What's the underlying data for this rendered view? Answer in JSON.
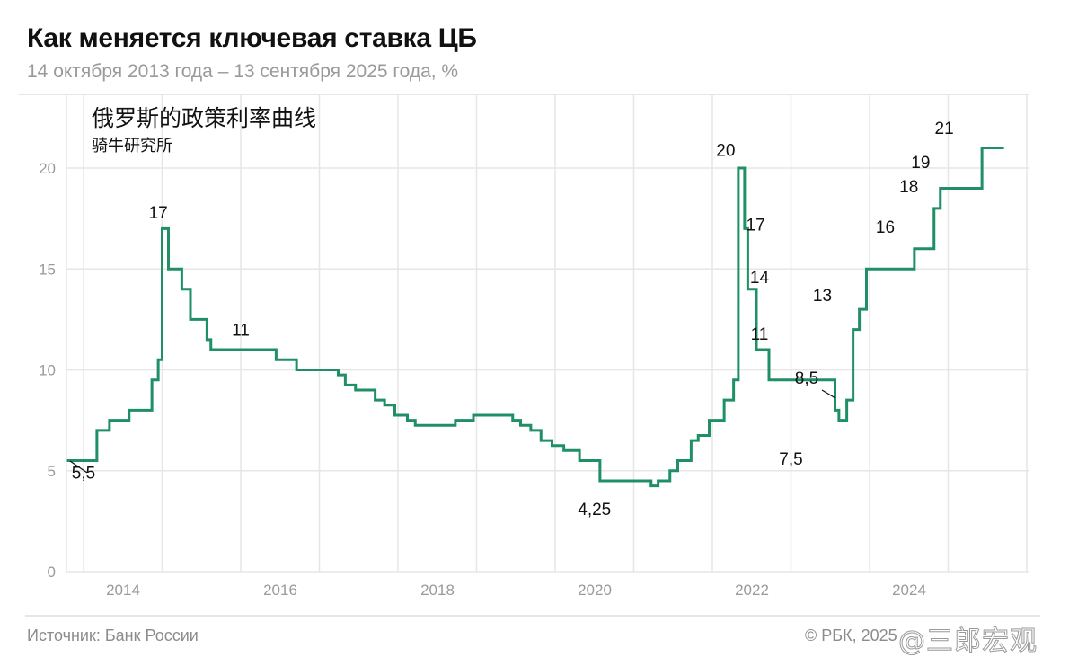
{
  "header": {
    "title": "Как меняется ключевая ставка ЦБ",
    "subtitle": "14 октября 2013 года – 13 сентября 2025 года, %"
  },
  "overlay": {
    "cn_title": "俄罗斯的政策利率曲线",
    "cn_subtitle": "骑牛研究所"
  },
  "footer": {
    "source": "Источник: Банк России",
    "copyright": "© РБК, 2025",
    "watermark": "@三郎宏观"
  },
  "colors": {
    "line": "#1f8f66",
    "grid": "#e6e6e6",
    "tick": "#9a9a9a"
  },
  "chart_data": {
    "type": "line",
    "step": true,
    "title": "Как меняется ключевая ставка ЦБ",
    "subtitle": "14 октября 2013 года – 13 сентября 2025 года, %",
    "xlabel": "",
    "ylabel": "%",
    "ylim": [
      0,
      22
    ],
    "xlim": [
      2013.79,
      2026.0
    ],
    "yticks": [
      0,
      5,
      10,
      15,
      20
    ],
    "xticks": [
      "2014",
      "2016",
      "2018",
      "2020",
      "2022",
      "2024"
    ],
    "grid": true,
    "legend": "none",
    "series": [
      {
        "name": "Ключевая ставка ЦБ",
        "x": [
          2013.79,
          2014.17,
          2014.33,
          2014.58,
          2014.87,
          2014.95,
          2015.0,
          2015.08,
          2015.25,
          2015.36,
          2015.57,
          2015.62,
          2016.45,
          2016.71,
          2017.24,
          2017.33,
          2017.46,
          2017.71,
          2017.83,
          2017.96,
          2018.12,
          2018.22,
          2018.73,
          2018.96,
          2019.46,
          2019.56,
          2019.69,
          2019.82,
          2019.96,
          2020.11,
          2020.31,
          2020.57,
          2021.22,
          2021.31,
          2021.46,
          2021.56,
          2021.73,
          2021.82,
          2021.96,
          2022.15,
          2022.27,
          2022.33,
          2022.41,
          2022.45,
          2022.56,
          2022.72,
          2023.56,
          2023.61,
          2023.71,
          2023.79,
          2023.87,
          2023.96,
          2024.57,
          2024.82,
          2024.9,
          2025.43
        ],
        "values": [
          5.5,
          7.0,
          7.5,
          8.0,
          9.5,
          10.5,
          17.0,
          15.0,
          14.0,
          12.5,
          11.5,
          11.0,
          10.5,
          10.0,
          9.75,
          9.25,
          9.0,
          8.5,
          8.25,
          7.75,
          7.5,
          7.25,
          7.5,
          7.75,
          7.5,
          7.25,
          7.0,
          6.5,
          6.25,
          6.0,
          5.5,
          4.5,
          4.25,
          4.5,
          5.0,
          5.5,
          6.5,
          6.75,
          7.5,
          8.5,
          9.5,
          20.0,
          17.0,
          14.0,
          11.0,
          9.5,
          8.0,
          7.5,
          8.5,
          12.0,
          13.0,
          15.0,
          16.0,
          18.0,
          19.0,
          21.0
        ],
        "end_x": 2025.71
      }
    ],
    "annotations": [
      {
        "text": "5,5",
        "x": 2014.0,
        "y": 4.6,
        "leader": true
      },
      {
        "text": "17",
        "x": 2014.95,
        "y": 17.5
      },
      {
        "text": "11",
        "x": 2016.0,
        "y": 11.7
      },
      {
        "text": "4,25",
        "x": 2020.5,
        "y": 2.8
      },
      {
        "text": "20",
        "x": 2022.17,
        "y": 20.6
      },
      {
        "text": "17",
        "x": 2022.55,
        "y": 16.9
      },
      {
        "text": "14",
        "x": 2022.6,
        "y": 14.3
      },
      {
        "text": "11",
        "x": 2022.6,
        "y": 11.5
      },
      {
        "text": "7,5",
        "x": 2023.0,
        "y": 5.3
      },
      {
        "text": "8,5",
        "x": 2023.2,
        "y": 9.3,
        "leader": true
      },
      {
        "text": "13",
        "x": 2023.4,
        "y": 13.4
      },
      {
        "text": "16",
        "x": 2024.2,
        "y": 16.8
      },
      {
        "text": "18",
        "x": 2024.5,
        "y": 18.8
      },
      {
        "text": "19",
        "x": 2024.65,
        "y": 20.0
      },
      {
        "text": "21",
        "x": 2024.95,
        "y": 21.7
      }
    ]
  }
}
